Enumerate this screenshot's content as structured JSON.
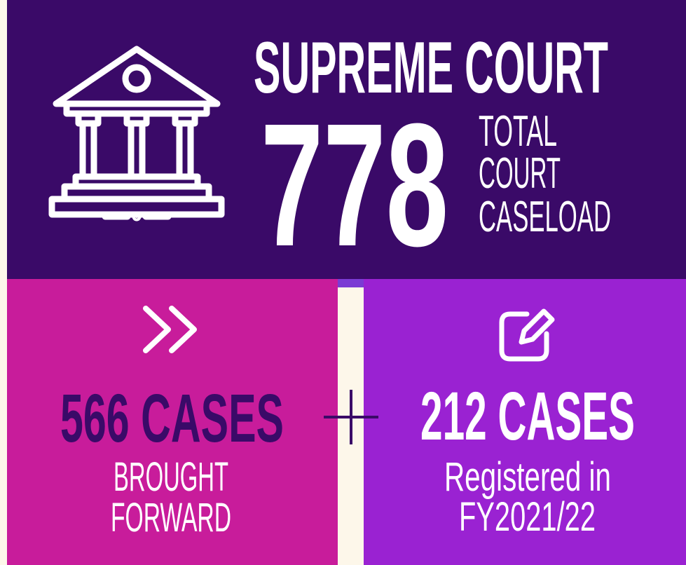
{
  "header": {
    "title": "SUPREME COURT"
  },
  "total": {
    "value": 778,
    "label_lines": [
      "TOTAL",
      "COURT",
      "CASELOAD"
    ]
  },
  "brought_forward": {
    "value": "566 CASES",
    "label_lines": [
      "BROUGHT",
      "FORWARD"
    ]
  },
  "registered": {
    "value": "212 CASES",
    "label_lines": [
      "Registered in",
      "FY2021/22"
    ]
  }
}
